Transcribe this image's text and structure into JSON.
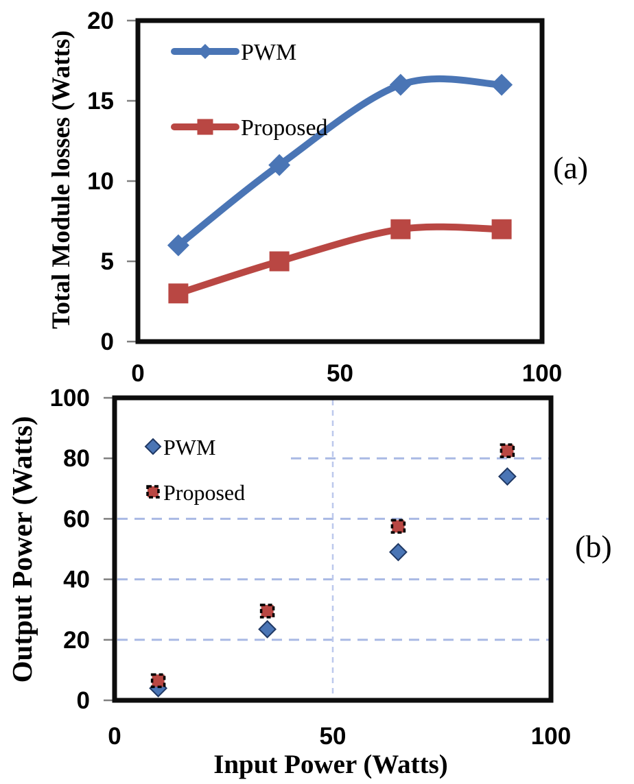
{
  "figure": {
    "background": "#ffffff",
    "panel_letters": [
      "(a)",
      "(b)"
    ]
  },
  "colors": {
    "pwm_blue": "#4a75b5",
    "proposed_red": "#b94743",
    "diamond_outline": "#1f3864",
    "square_outline_black": "#000000",
    "gridline_blue": "#a9b9e4",
    "gridline_vertical_blue": "#bcc8ec",
    "axis_border": "#0d0d0d",
    "tick_mark_gray": "#7f7f7f",
    "text_black": "#000000"
  },
  "chart_data": [
    {
      "id": "a",
      "type": "line",
      "panel_label": "(a)",
      "title": "",
      "xlabel": "",
      "ylabel": "Total Module losses (Watts)",
      "x": [
        10,
        35,
        65,
        90
      ],
      "series": [
        {
          "name": "PWM",
          "values": [
            6,
            11,
            16,
            16
          ],
          "color": "#4a75b5",
          "marker": "diamond",
          "marker_outline": "none"
        },
        {
          "name": "Proposed",
          "values": [
            3,
            5,
            7,
            7
          ],
          "color": "#b94743",
          "marker": "square",
          "marker_outline": "none"
        }
      ],
      "xlim": [
        0,
        100
      ],
      "ylim": [
        0,
        20
      ],
      "xticks": [
        0,
        50,
        100
      ],
      "yticks": [
        0,
        5,
        10,
        15,
        20
      ],
      "grid": false,
      "smooth": true,
      "legend_position": "top-left-inside",
      "legend_style": "line-with-marker"
    },
    {
      "id": "b",
      "type": "scatter",
      "panel_label": "(b)",
      "title": "",
      "xlabel": "Input Power (Watts)",
      "ylabel": "Output Power (Watts)",
      "x": [
        10,
        35,
        65,
        90
      ],
      "series": [
        {
          "name": "PWM",
          "values": [
            4,
            23.5,
            49,
            74
          ],
          "color": "#4a75b5",
          "marker": "diamond",
          "marker_outline": "thin-dark"
        },
        {
          "name": "Proposed",
          "values": [
            6.5,
            29.5,
            57.5,
            82.5
          ],
          "color": "#b94743",
          "marker": "square",
          "marker_outline": "dashed-black"
        }
      ],
      "xlim": [
        0,
        100
      ],
      "ylim": [
        0,
        100
      ],
      "xticks": [
        0,
        50,
        100
      ],
      "yticks": [
        0,
        20,
        40,
        60,
        80,
        100
      ],
      "grid": true,
      "grid_y_values": [
        20,
        40,
        60,
        80
      ],
      "grid_x_values": [
        50
      ],
      "smooth": false,
      "legend_position": "top-left-inside",
      "legend_style": "marker-only"
    }
  ]
}
